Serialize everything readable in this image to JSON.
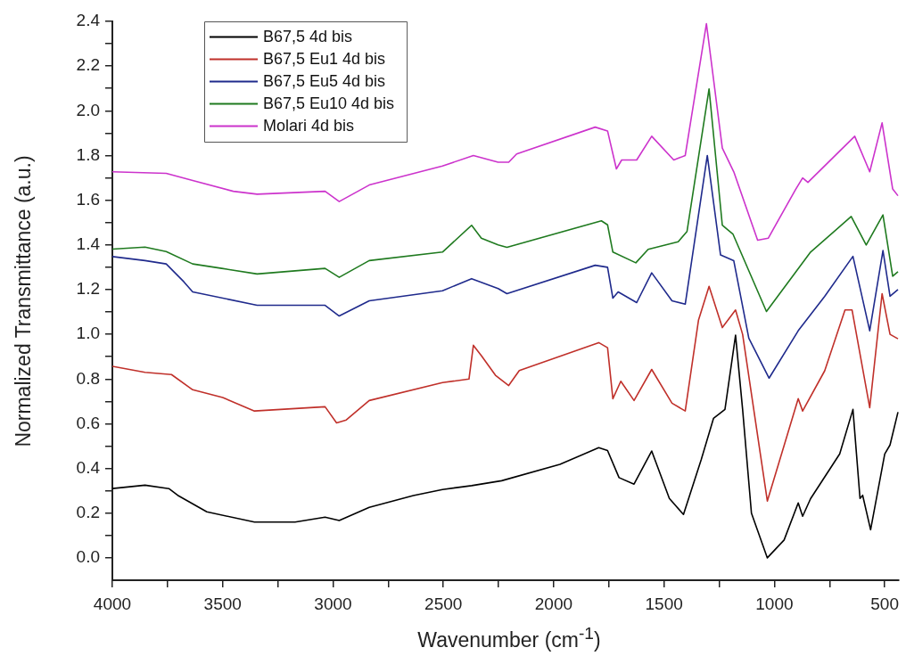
{
  "chart_data": {
    "type": "line",
    "xlabel": "Wavenumber (cm$^{-1}$)",
    "ylabel": "Normalized Transmittance (a.u.)",
    "xlim": [
      4000,
      436
    ],
    "ylim": [
      -0.1,
      2.4
    ],
    "xticks": [
      4000,
      {
        "value": 3750,
        "label": null
      },
      3500,
      {
        "value": 3250,
        "label": null
      },
      3000,
      {
        "value": 2750,
        "label": null
      },
      2500,
      {
        "value": 2250,
        "label": null
      },
      2000,
      {
        "value": 1750,
        "label": null
      },
      1500,
      {
        "value": 1250,
        "label": null
      },
      1000,
      {
        "value": 750,
        "label": null
      },
      500
    ],
    "yticks": [
      {
        "value": 0,
        "label": "0.0"
      },
      {
        "value": 0.1,
        "label": null
      },
      {
        "value": 0.2,
        "label": "0.2"
      },
      {
        "value": 0.3,
        "label": null
      },
      {
        "value": 0.4,
        "label": "0.4"
      },
      {
        "value": 0.5,
        "label": null
      },
      {
        "value": 0.6,
        "label": "0.6"
      },
      {
        "value": 0.7,
        "label": null
      },
      {
        "value": 0.8,
        "label": "0.8"
      },
      {
        "value": 0.9,
        "label": null
      },
      {
        "value": 1,
        "label": "1.0"
      },
      {
        "value": 1.1,
        "label": null
      },
      {
        "value": 1.2,
        "label": "1.2"
      },
      {
        "value": 1.3,
        "label": null
      },
      {
        "value": 1.4,
        "label": "1.4"
      },
      {
        "value": 1.5,
        "label": null
      },
      {
        "value": 1.6,
        "label": "1.6"
      },
      {
        "value": 1.7,
        "label": null
      },
      {
        "value": 1.8,
        "label": "1.8"
      },
      {
        "value": 1.9,
        "label": null
      },
      {
        "value": 2,
        "label": "2.0"
      },
      {
        "value": 2.1,
        "label": null
      },
      {
        "value": 2.2,
        "label": "2.2"
      },
      {
        "value": 2.3,
        "label": null
      },
      {
        "value": 2.4,
        "label": "2.4"
      }
    ],
    "grid": false,
    "legend": "top left",
    "marker": "none",
    "line_style": "solid",
    "series": [
      {
        "name": "B67,5 4d bis",
        "color": "#000000",
        "x": [
          4000,
          3852,
          3744,
          3704,
          3572,
          3356,
          3172,
          3036,
          2972,
          2836,
          2636,
          2504,
          2372,
          2236,
          1972,
          1796,
          1756,
          1704,
          1636,
          1556,
          1476,
          1412,
          1332,
          1276,
          1224,
          1176,
          1144,
          1104,
          1032,
          956,
          892,
          872,
          836,
          704,
          644,
          612,
          600,
          564,
          500,
          476,
          440
        ],
        "values": [
          0.31,
          0.325,
          0.31,
          0.28,
          0.206,
          0.16,
          0.16,
          0.182,
          0.167,
          0.226,
          0.279,
          0.306,
          0.323,
          0.345,
          0.418,
          0.493,
          0.48,
          0.359,
          0.33,
          0.478,
          0.266,
          0.194,
          0.438,
          0.624,
          0.664,
          0.996,
          0.664,
          0.2,
          0.0,
          0.08,
          0.246,
          0.186,
          0.265,
          0.465,
          0.664,
          0.266,
          0.28,
          0.126,
          0.465,
          0.505,
          0.652
        ]
      },
      {
        "name": "B67,5 Eu1 4d bis",
        "color": "#c0302a",
        "x": [
          4000,
          3852,
          3732,
          3636,
          3500,
          3356,
          3036,
          2984,
          2940,
          2836,
          2504,
          2384,
          2364,
          2328,
          2264,
          2204,
          2156,
          1796,
          1756,
          1732,
          1696,
          1636,
          1556,
          1464,
          1404,
          1344,
          1296,
          1236,
          1176,
          1144,
          1032,
          892,
          872,
          772,
          680,
          648,
          568,
          512,
          476,
          440
        ],
        "values": [
          0.857,
          0.83,
          0.82,
          0.752,
          0.717,
          0.657,
          0.676,
          0.604,
          0.617,
          0.704,
          0.784,
          0.8,
          0.951,
          0.905,
          0.817,
          0.771,
          0.838,
          0.963,
          0.94,
          0.712,
          0.79,
          0.704,
          0.843,
          0.692,
          0.657,
          1.063,
          1.215,
          1.03,
          1.109,
          1.0,
          0.254,
          0.712,
          0.657,
          0.837,
          1.109,
          1.109,
          0.672,
          1.182,
          1.0,
          0.98
        ]
      },
      {
        "name": "B67,5 Eu5 4d bis",
        "color": "#1f2a8c",
        "x": [
          4000,
          3852,
          3756,
          3676,
          3636,
          3344,
          3036,
          2972,
          2836,
          2504,
          2372,
          2252,
          2212,
          1812,
          1756,
          1732,
          1708,
          1624,
          1556,
          1464,
          1404,
          1304,
          1244,
          1184,
          1116,
          1024,
          892,
          772,
          644,
          568,
          508,
          476,
          440
        ],
        "values": [
          1.348,
          1.33,
          1.315,
          1.235,
          1.19,
          1.13,
          1.13,
          1.082,
          1.15,
          1.195,
          1.249,
          1.205,
          1.182,
          1.309,
          1.3,
          1.162,
          1.19,
          1.142,
          1.275,
          1.15,
          1.135,
          1.8,
          1.355,
          1.329,
          0.983,
          0.804,
          1.016,
          1.17,
          1.349,
          1.016,
          1.375,
          1.17,
          1.2
        ]
      },
      {
        "name": "B67,5 Eu10 4d bis",
        "color": "#1f7a1f",
        "x": [
          4000,
          3852,
          3756,
          3636,
          3504,
          3344,
          3036,
          2972,
          2836,
          2504,
          2372,
          2328,
          2252,
          2212,
          1784,
          1756,
          1732,
          1628,
          1572,
          1436,
          1396,
          1296,
          1236,
          1188,
          1036,
          836,
          652,
          584,
          508,
          464,
          440
        ],
        "values": [
          1.381,
          1.39,
          1.37,
          1.315,
          1.295,
          1.27,
          1.295,
          1.255,
          1.33,
          1.368,
          1.488,
          1.43,
          1.4,
          1.389,
          1.508,
          1.49,
          1.368,
          1.32,
          1.38,
          1.414,
          1.46,
          2.098,
          1.488,
          1.449,
          1.102,
          1.368,
          1.527,
          1.4,
          1.534,
          1.26,
          1.28
        ]
      },
      {
        "name": "Molari 4d bis",
        "color": "#cc33cc",
        "x": [
          4000,
          3756,
          3636,
          3452,
          3344,
          3036,
          2972,
          2836,
          2504,
          2364,
          2252,
          2204,
          2168,
          1812,
          1756,
          1716,
          1692,
          1624,
          1556,
          1456,
          1404,
          1308,
          1236,
          1184,
          1076,
          1028,
          904,
          872,
          848,
          636,
          568,
          512,
          464,
          440
        ],
        "values": [
          1.727,
          1.72,
          1.688,
          1.64,
          1.627,
          1.64,
          1.594,
          1.668,
          1.753,
          1.8,
          1.77,
          1.77,
          1.807,
          1.927,
          1.91,
          1.74,
          1.78,
          1.78,
          1.886,
          1.78,
          1.8,
          2.39,
          1.833,
          1.727,
          1.421,
          1.43,
          1.648,
          1.7,
          1.68,
          1.886,
          1.727,
          1.946,
          1.65,
          1.62
        ]
      }
    ]
  }
}
